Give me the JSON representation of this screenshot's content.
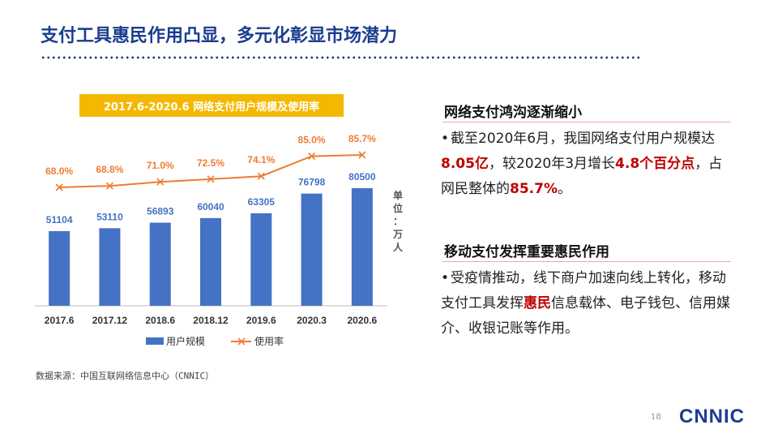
{
  "slide": {
    "title": "支付工具惠民作用凸显，多元化彰显市场潜力",
    "page_number": "18",
    "logo": "CNNIC",
    "source": "数据来源：中国互联网络信息中心（CNNIC）"
  },
  "chart_data": {
    "type": "bar+line",
    "title": "2017.6-2020.6 网络支付用户规模及使用率",
    "categories": [
      "2017.6",
      "2017.12",
      "2018.6",
      "2018.12",
      "2019.6",
      "2020.3",
      "2020.6"
    ],
    "series": [
      {
        "name": "用户规模",
        "type": "bar",
        "values": [
          51104,
          53110,
          56893,
          60040,
          63305,
          76798,
          80500
        ],
        "labels": [
          "51104",
          "53110",
          "56893",
          "60040",
          "63305",
          "76798",
          "80500"
        ],
        "color": "#4472c4"
      },
      {
        "name": "使用率",
        "type": "line",
        "values": [
          68.0,
          68.8,
          71.0,
          72.5,
          74.1,
          85.0,
          85.7
        ],
        "labels": [
          "68.0%",
          "68.8%",
          "71.0%",
          "72.5%",
          "74.1%",
          "85.0%",
          "85.7%"
        ],
        "color": "#ed7d31"
      }
    ],
    "bar_range": [
      0,
      90000
    ],
    "line_range": [
      40,
      100
    ],
    "unit_chars": [
      "单",
      "位",
      "：",
      "万",
      "人"
    ],
    "legend": "bottom"
  },
  "sections": [
    {
      "heading": "网络支付鸿沟逐渐缩小",
      "segments": [
        {
          "text": "截至2020年6月，我国网络支付用户规模达",
          "hl": false
        },
        {
          "text": "8.05亿",
          "hl": true
        },
        {
          "text": "，较2020年3月增长",
          "hl": false
        },
        {
          "text": "4.8个百分点",
          "hl": true
        },
        {
          "text": "，占网民整体的",
          "hl": false
        },
        {
          "text": "85.7%",
          "hl": true
        },
        {
          "text": "。",
          "hl": false
        }
      ]
    },
    {
      "heading": "移动支付发挥重要惠民作用",
      "segments": [
        {
          "text": "受疫情推动，线下商户加速向线上转化，移动支付工具发挥",
          "hl": false
        },
        {
          "text": "惠民",
          "hl": true
        },
        {
          "text": "信息载体、电子钱包、信用媒介、收银记账等作用。",
          "hl": false
        }
      ]
    }
  ]
}
